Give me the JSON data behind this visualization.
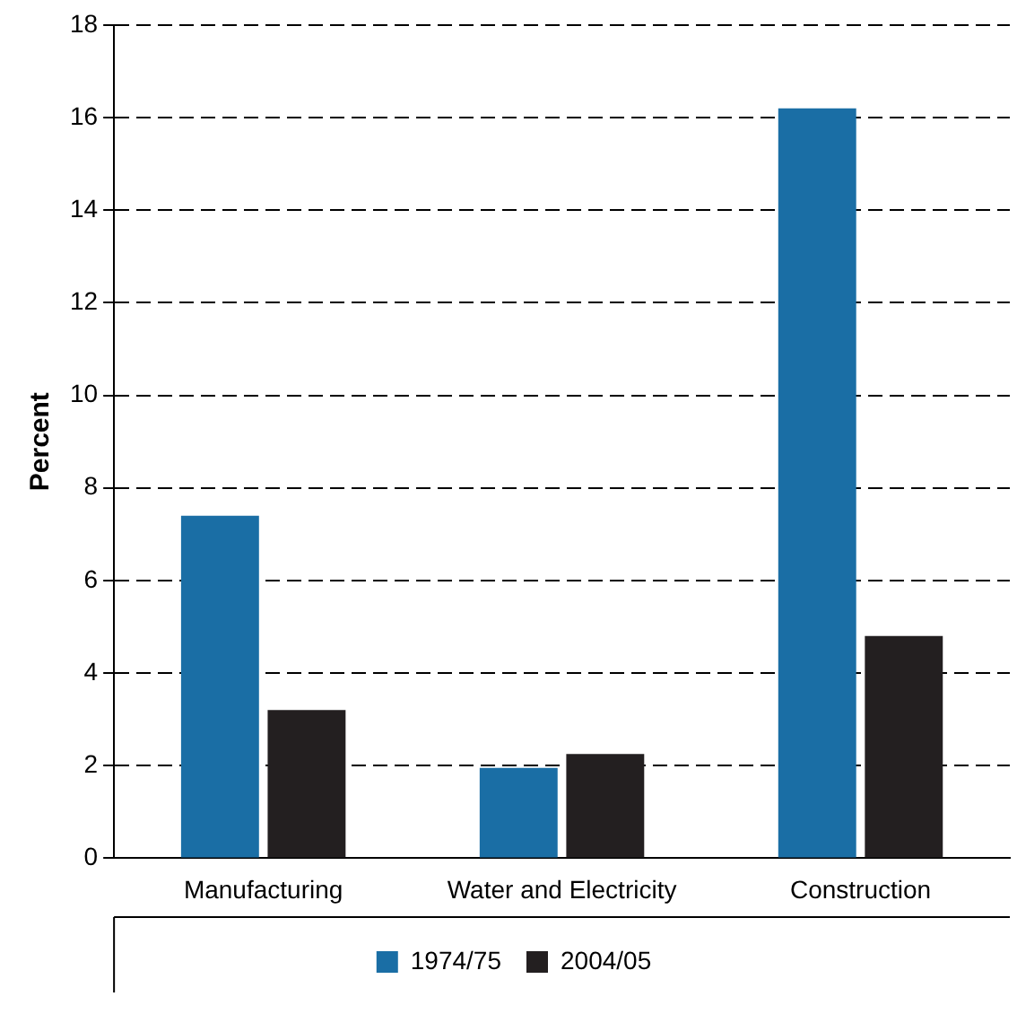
{
  "chart_data": {
    "type": "bar",
    "ylabel": "Percent",
    "categories": [
      "Manufacturing",
      "Water and Electricity",
      "Construction"
    ],
    "series": [
      {
        "name": "1974/75",
        "color": "#1a6ea5",
        "values": [
          7.4,
          1.95,
          16.2
        ]
      },
      {
        "name": "2004/05",
        "color": "#231f20",
        "values": [
          3.2,
          2.25,
          4.8
        ]
      }
    ],
    "ylim": [
      0,
      18
    ],
    "yticks": [
      0,
      2,
      4,
      6,
      8,
      10,
      12,
      14,
      16,
      18
    ],
    "grid": "y",
    "line_style": "dashed",
    "legend": "bottom"
  }
}
